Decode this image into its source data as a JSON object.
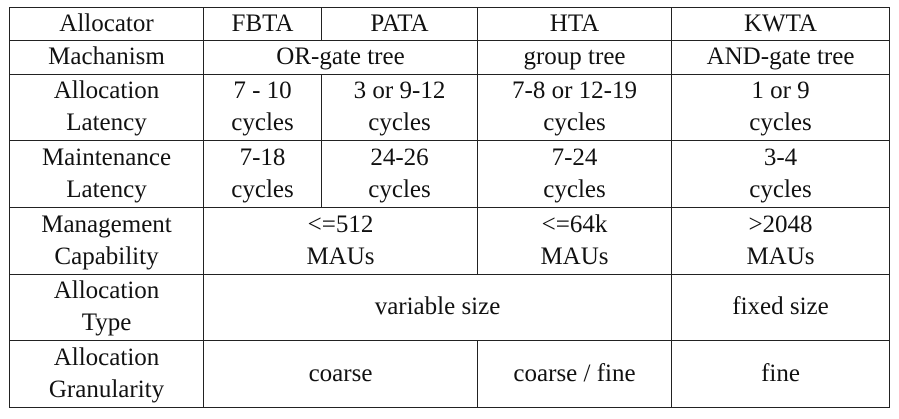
{
  "table": {
    "header": {
      "col0": "Allocator",
      "fbta": "FBTA",
      "pata": "PATA",
      "hta": "HTA",
      "kwta": "KWTA"
    },
    "mechanism": {
      "label": "Machanism",
      "fbta_pata": "OR-gate tree",
      "hta": "group tree",
      "kwta": "AND-gate tree"
    },
    "allocation_latency": {
      "label": [
        "Allocation",
        "Latency"
      ],
      "fbta": [
        "7 - 10",
        "cycles"
      ],
      "pata": [
        "3 or 9-12",
        "cycles"
      ],
      "hta": [
        "7-8 or 12-19",
        "cycles"
      ],
      "kwta": [
        "1 or 9",
        "cycles"
      ]
    },
    "maintenance_latency": {
      "label": [
        "Maintenance",
        "Latency"
      ],
      "fbta": [
        "7-18",
        "cycles"
      ],
      "pata": [
        "24-26",
        "cycles"
      ],
      "hta": [
        "7-24",
        "cycles"
      ],
      "kwta": [
        "3-4",
        "cycles"
      ]
    },
    "management_capability": {
      "label": [
        "Management",
        "Capability"
      ],
      "fbta_pata": [
        "<=512",
        "MAUs"
      ],
      "hta": [
        "<=64k",
        "MAUs"
      ],
      "kwta": [
        ">2048",
        "MAUs"
      ]
    },
    "allocation_type": {
      "label": [
        "Allocation",
        "Type"
      ],
      "fbta_pata_hta": "variable size",
      "kwta": "fixed size"
    },
    "allocation_granularity": {
      "label": [
        "Allocation",
        "Granularity"
      ],
      "fbta_pata": "coarse",
      "hta": "coarse / fine",
      "kwta": "fine"
    }
  }
}
